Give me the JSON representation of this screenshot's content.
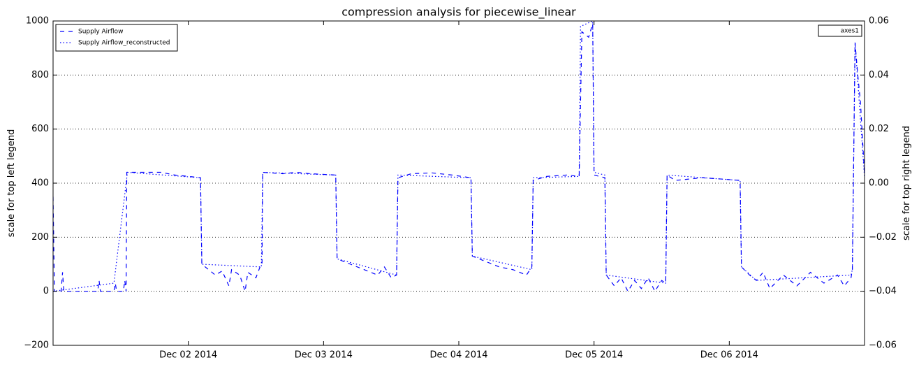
{
  "chart_data": {
    "type": "line",
    "title": "compression analysis for piecewise_linear",
    "ylabel": "scale for top left legend",
    "y2label": "scale for top right legend",
    "xlim": [
      0,
      6
    ],
    "xticks": [
      {
        "value": 1,
        "label": "Dec 02 2014"
      },
      {
        "value": 2,
        "label": "Dec 03 2014"
      },
      {
        "value": 3,
        "label": "Dec 04 2014"
      },
      {
        "value": 4,
        "label": "Dec 05 2014"
      },
      {
        "value": 5,
        "label": "Dec 06 2014"
      }
    ],
    "ylim": [
      -200,
      1000
    ],
    "yticks": [
      {
        "value": -200,
        "label": "−200"
      },
      0,
      200,
      400,
      600,
      800,
      1000
    ],
    "y2lim": [
      -0.06,
      0.06
    ],
    "y2ticks": [
      {
        "value": -0.06,
        "label": "−0.06"
      },
      {
        "value": -0.04,
        "label": "−0.04"
      },
      {
        "value": -0.02,
        "label": "−0.02"
      },
      {
        "value": 0,
        "label": "0.00"
      },
      0.02,
      0.04,
      0.06
    ],
    "grid": true,
    "legend": "upper left",
    "legend2": {
      "position": "upper right",
      "entries": [
        "axes1"
      ]
    },
    "series": [
      {
        "name": "Supply Airflow",
        "color": "#0000ff",
        "style": "dashed",
        "x": [
          0,
          0.01,
          0.06,
          0.07,
          0.08,
          0.33,
          0.34,
          0.35,
          0.45,
          0.46,
          0.47,
          0.52,
          0.53,
          0.54,
          0.545,
          0.7,
          0.8,
          0.9,
          1.0,
          1.09,
          1.1,
          1.15,
          1.2,
          1.25,
          1.3,
          1.32,
          1.38,
          1.42,
          1.44,
          1.5,
          1.53,
          1.545,
          1.55,
          1.7,
          1.8,
          1.9,
          2.09,
          2.1,
          2.2,
          2.3,
          2.4,
          2.45,
          2.5,
          2.54,
          2.55,
          2.65,
          2.8,
          2.95,
          3.09,
          3.1,
          3.2,
          3.3,
          3.4,
          3.5,
          3.54,
          3.55,
          3.65,
          3.8,
          3.89,
          3.91,
          3.96,
          3.99,
          4.0,
          4.08,
          4.09,
          4.15,
          4.2,
          4.25,
          4.3,
          4.35,
          4.4,
          4.45,
          4.5,
          4.53,
          4.54,
          4.6,
          4.8,
          4.95,
          5.08,
          5.09,
          5.15,
          5.2,
          5.25,
          5.3,
          5.4,
          5.5,
          5.6,
          5.7,
          5.8,
          5.85,
          5.9,
          5.91,
          5.93,
          5.95,
          5.97,
          6.0
        ],
        "values": [
          350,
          0,
          0,
          70,
          0,
          0,
          40,
          0,
          0,
          30,
          0,
          0,
          40,
          0,
          440,
          440,
          440,
          430,
          425,
          420,
          100,
          80,
          60,
          75,
          20,
          80,
          60,
          0,
          70,
          50,
          90,
          100,
          440,
          435,
          440,
          435,
          430,
          120,
          100,
          80,
          60,
          90,
          50,
          60,
          420,
          435,
          438,
          430,
          420,
          130,
          110,
          90,
          80,
          60,
          90,
          410,
          425,
          430,
          425,
          960,
          940,
          990,
          430,
          420,
          60,
          20,
          50,
          0,
          40,
          10,
          50,
          0,
          40,
          30,
          430,
          410,
          420,
          415,
          410,
          90,
          60,
          40,
          70,
          10,
          60,
          20,
          70,
          30,
          60,
          20,
          50,
          80,
          920,
          800,
          700,
          430
        ]
      },
      {
        "name": "Supply Airflow_reconstructed",
        "color": "#0000ff",
        "style": "dotted",
        "x": [
          0,
          0.45,
          0.55,
          1.09,
          1.1,
          1.54,
          1.55,
          2.09,
          2.1,
          2.54,
          2.55,
          3.09,
          3.1,
          3.54,
          3.55,
          3.89,
          3.9,
          3.99,
          4.0,
          4.08,
          4.09,
          4.53,
          4.54,
          5.08,
          5.09,
          5.2,
          5.9,
          5.91,
          5.93,
          6.0
        ],
        "values": [
          0,
          30,
          440,
          420,
          100,
          90,
          440,
          430,
          120,
          60,
          430,
          420,
          130,
          80,
          420,
          425,
          980,
          1000,
          440,
          430,
          60,
          30,
          430,
          410,
          90,
          40,
          60,
          80,
          920,
          420
        ]
      }
    ]
  }
}
